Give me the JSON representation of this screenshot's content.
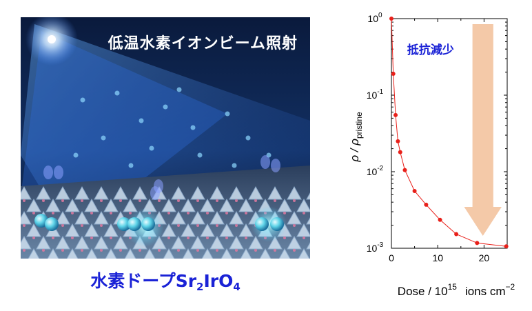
{
  "illustration": {
    "title": "低温水素イオンビーム照射",
    "caption_main": "水素ドープSr",
    "caption_sub1": "2",
    "caption_mid": "IrO",
    "caption_sub2": "4"
  },
  "chart_data": {
    "type": "line",
    "xlabel": "Dose / 10",
    "xlabel_sup": "15",
    "xlabel_unit": "ions cm",
    "xlabel_unit_sup": "−2",
    "ylabel_main": "ρ / ρ",
    "ylabel_sub": "pristine",
    "xlim": [
      0,
      25
    ],
    "ylim": [
      0.001,
      1
    ],
    "yscale": "log",
    "x_ticks": [
      0,
      10,
      20
    ],
    "y_ticks": [
      {
        "base": "10",
        "exp": "0"
      },
      {
        "base": "10",
        "exp": "-1"
      },
      {
        "base": "10",
        "exp": "-2"
      },
      {
        "base": "10",
        "exp": "-3"
      }
    ],
    "series": [
      {
        "color": "#e8201a",
        "points": [
          [
            0,
            1.0
          ],
          [
            0.4,
            0.19
          ],
          [
            0.9,
            0.055
          ],
          [
            1.4,
            0.025
          ],
          [
            1.9,
            0.018
          ],
          [
            2.9,
            0.0105
          ],
          [
            5,
            0.0056
          ],
          [
            7.5,
            0.0037
          ],
          [
            10.5,
            0.00235
          ],
          [
            14,
            0.00153
          ],
          [
            18.5,
            0.00117
          ],
          [
            24.8,
            0.00106
          ]
        ]
      }
    ],
    "annotation": {
      "text": "抵抗減少",
      "arrow_color": "#f4c9a8"
    }
  }
}
